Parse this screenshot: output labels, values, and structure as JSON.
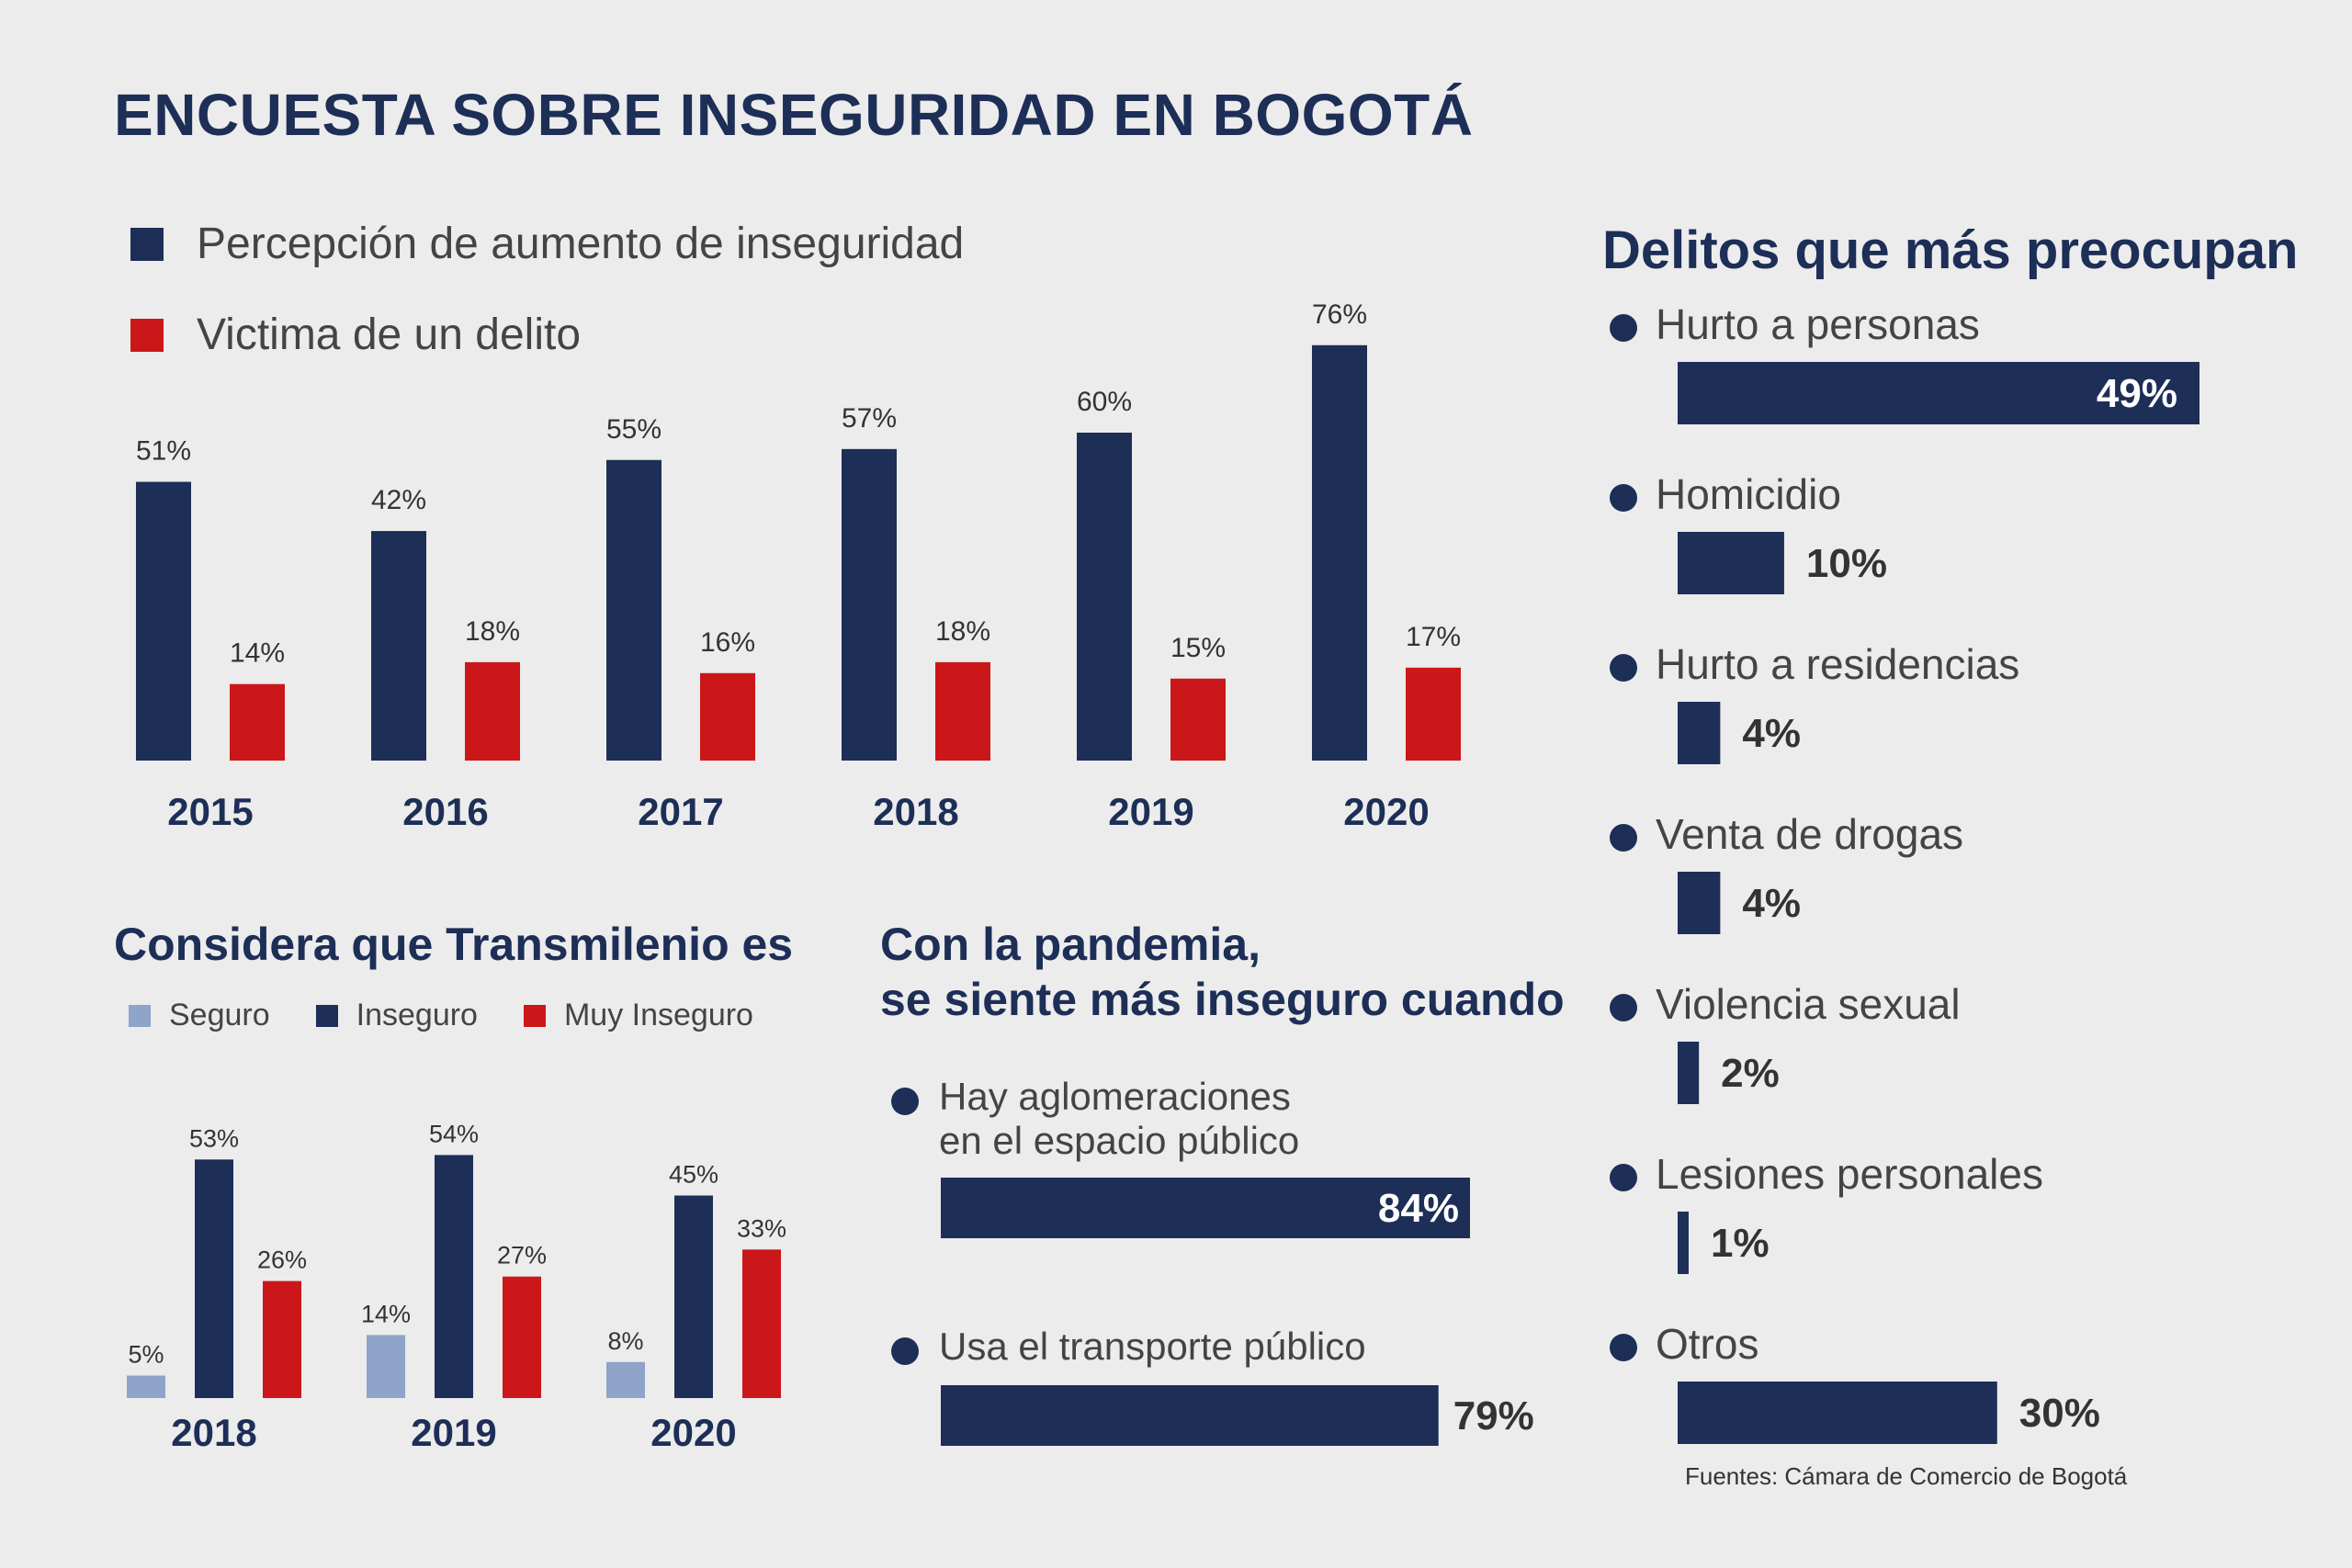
{
  "title": "ENCUESTA SOBRE INSEGURIDAD EN BOGOTÁ",
  "colors": {
    "navy": "#1d2e57",
    "red": "#cb1719",
    "light": "#8ea4c8",
    "background": "#ececec"
  },
  "main_legend": [
    {
      "label": "Percepción de aumento de inseguridad",
      "color": "#1d2e57"
    },
    {
      "label": "Victima de un delito",
      "color": "#cb1719"
    }
  ],
  "transmilenio": {
    "title": "Considera que Transmilenio es",
    "legend": [
      {
        "label": "Seguro",
        "color": "#8ea4c8"
      },
      {
        "label": "Inseguro",
        "color": "#1d2e57"
      },
      {
        "label": "Muy Inseguro",
        "color": "#cb1719"
      }
    ]
  },
  "pandemic": {
    "title_line1": "Con la pandemia,",
    "title_line2": "se siente más inseguro cuando",
    "items": [
      {
        "line1": "Hay aglomeraciones",
        "line2": "en el espacio público",
        "value": 84,
        "label": "84%"
      },
      {
        "line1": "Usa el transporte público",
        "line2": "",
        "value": 79,
        "label": "79%"
      }
    ]
  },
  "crimes": {
    "title": "Delitos que más preocupan",
    "items": [
      {
        "label": "Hurto a personas",
        "value": 49,
        "display": "49%"
      },
      {
        "label": "Homicidio",
        "value": 10,
        "display": "10%"
      },
      {
        "label": "Hurto a residencias",
        "value": 4,
        "display": "4%"
      },
      {
        "label": "Venta de drogas",
        "value": 4,
        "display": "4%"
      },
      {
        "label": "Violencia sexual",
        "value": 2,
        "display": "2%"
      },
      {
        "label": "Lesiones personales",
        "value": 1,
        "display": "1%"
      },
      {
        "label": "Otros",
        "value": 30,
        "display": "30%"
      }
    ]
  },
  "source": "Fuentes: Cámara de Comercio de Bogotá",
  "chart_data": [
    {
      "type": "bar",
      "title": "",
      "categories": [
        "2015",
        "2016",
        "2017",
        "2018",
        "2019",
        "2020"
      ],
      "series": [
        {
          "name": "Percepción de aumento de inseguridad",
          "color": "#1d2e57",
          "values": [
            51,
            42,
            55,
            57,
            60,
            76
          ],
          "labels": [
            "51%",
            "42%",
            "55%",
            "57%",
            "60%",
            "76%"
          ]
        },
        {
          "name": "Victima de un delito",
          "color": "#cb1719",
          "values": [
            14,
            18,
            16,
            18,
            15,
            17
          ],
          "labels": [
            "14%",
            "18%",
            "16%",
            "18%",
            "15%",
            "17%"
          ]
        }
      ],
      "ylim": [
        0,
        100
      ]
    },
    {
      "type": "bar",
      "title": "Considera que Transmilenio es",
      "categories": [
        "2018",
        "2019",
        "2020"
      ],
      "series": [
        {
          "name": "Seguro",
          "color": "#8ea4c8",
          "values": [
            5,
            14,
            8
          ],
          "labels": [
            "5%",
            "14%",
            "8%"
          ]
        },
        {
          "name": "Inseguro",
          "color": "#1d2e57",
          "values": [
            53,
            54,
            45
          ],
          "labels": [
            "53%",
            "54%",
            "45%"
          ]
        },
        {
          "name": "Muy Inseguro",
          "color": "#cb1719",
          "values": [
            26,
            27,
            33
          ],
          "labels": [
            "26%",
            "27%",
            "33%"
          ]
        }
      ],
      "ylim": [
        0,
        100
      ]
    },
    {
      "type": "bar",
      "orientation": "horizontal",
      "title": "Con la pandemia, se siente más inseguro cuando",
      "categories": [
        "Hay aglomeraciones en el espacio público",
        "Usa el transporte público"
      ],
      "values": [
        84,
        79
      ]
    },
    {
      "type": "bar",
      "orientation": "horizontal",
      "title": "Delitos que más preocupan",
      "categories": [
        "Hurto a personas",
        "Homicidio",
        "Hurto a residencias",
        "Venta de drogas",
        "Violencia sexual",
        "Lesiones personales",
        "Otros"
      ],
      "values": [
        49,
        10,
        4,
        4,
        2,
        1,
        30
      ]
    }
  ]
}
